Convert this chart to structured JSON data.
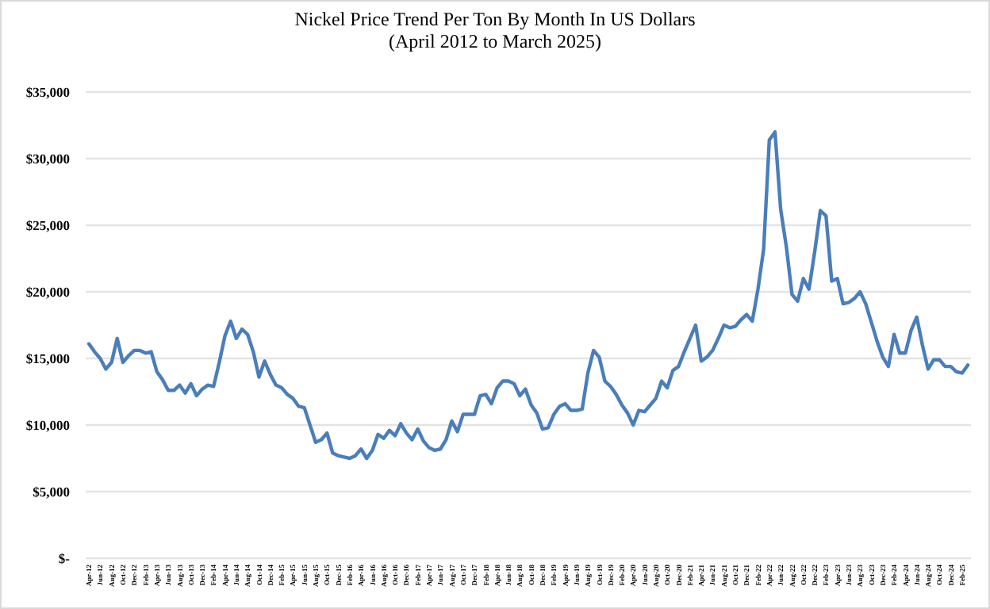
{
  "chart_data": {
    "type": "line",
    "title": "Nickel Price Trend Per Ton By Month In US Dollars",
    "subtitle": "(April 2012 to March 2025)",
    "categories": [
      "Apr-12",
      null,
      "Jun-12",
      null,
      "Aug-12",
      null,
      "Oct-12",
      null,
      "Dec-12",
      null,
      "Feb-13",
      null,
      "Apr-13",
      null,
      "Jun-13",
      null,
      "Aug-13",
      null,
      "Oct-13",
      null,
      "Dec-13",
      null,
      "Feb-14",
      null,
      "Apr-14",
      null,
      "Jun-14",
      null,
      "Aug-14",
      null,
      "Oct-14",
      null,
      "Dec-14",
      null,
      "Feb-15",
      null,
      "Apr-15",
      null,
      "Jun-15",
      null,
      "Aug-15",
      null,
      "Oct-15",
      null,
      "Dec-15",
      null,
      "Feb-16",
      null,
      "Apr-16",
      null,
      "Jun-16",
      null,
      "Aug-16",
      null,
      "Oct-16",
      null,
      "Dec-16",
      null,
      "Feb-17",
      null,
      "Apr-17",
      null,
      "Jun-17",
      null,
      "Aug-17",
      null,
      "Oct-17",
      null,
      "Dec-17",
      null,
      "Feb-18",
      null,
      "Apr-18",
      null,
      "Jun-18",
      null,
      "Aug-18",
      null,
      "Oct-18",
      null,
      "Dec-18",
      null,
      "Feb-19",
      null,
      "Apr-19",
      null,
      "Jun-19",
      null,
      "Aug-19",
      null,
      "Oct-19",
      null,
      "Dec-19",
      null,
      "Feb-20",
      null,
      "Apr-20",
      null,
      "Jun-20",
      null,
      "Aug-20",
      null,
      "Oct-20",
      null,
      "Dec-20",
      null,
      "Feb-21",
      null,
      "Apr-21",
      null,
      "Jun-21",
      null,
      "Aug-21",
      null,
      "Oct-21",
      null,
      "Dec-21",
      null,
      "Feb-22",
      null,
      "Apr-22",
      null,
      "Jun-22",
      null,
      "Aug-22",
      null,
      "Oct-22",
      null,
      "Dec-22",
      null,
      "Feb-23",
      null,
      "Apr-23",
      null,
      "Jun-23",
      null,
      "Aug-23",
      null,
      "Oct-23",
      null,
      "Dec-23",
      null,
      "Feb-24",
      null,
      "Apr-24",
      null,
      "Jun-24",
      null,
      "Aug-24",
      null,
      "Oct-24",
      null,
      "Dec-24",
      null,
      "Feb-25",
      null
    ],
    "series": [
      {
        "color": "#4a7ebb",
        "values": [
          16100,
          15500,
          15000,
          14200,
          14700,
          16500,
          14700,
          15200,
          15600,
          15600,
          15400,
          15500,
          14000,
          13400,
          12600,
          12600,
          13000,
          12400,
          13100,
          12200,
          12700,
          13000,
          12900,
          14700,
          16700,
          17800,
          16500,
          17200,
          16800,
          15500,
          13600,
          14800,
          13800,
          13000,
          12800,
          12300,
          12000,
          11400,
          11300,
          10000,
          8700,
          8900,
          9400,
          7900,
          7700,
          7600,
          7500,
          7700,
          8200,
          7500,
          8100,
          9300,
          9000,
          9600,
          9200,
          10100,
          9400,
          8900,
          9700,
          8800,
          8300,
          8100,
          8200,
          8900,
          10300,
          9500,
          10800,
          10800,
          10800,
          12200,
          12300,
          11600,
          12800,
          13300,
          13300,
          13100,
          12200,
          12700,
          11500,
          10900,
          9700,
          9800,
          10800,
          11400,
          11600,
          11100,
          11100,
          11200,
          13900,
          15600,
          15100,
          13300,
          12900,
          12300,
          11500,
          10900,
          10000,
          11100,
          11000,
          11500,
          12000,
          13300,
          12800,
          14100,
          14400,
          15500,
          16500,
          17500,
          14800,
          15100,
          15600,
          16500,
          17500,
          17300,
          17400,
          17900,
          18300,
          17800,
          20200,
          23200,
          31400,
          32000,
          26200,
          23400,
          19800,
          19300,
          21000,
          20200,
          23000,
          26100,
          25700,
          20800,
          21000,
          19100,
          19200,
          19500,
          20000,
          19100,
          17700,
          16300,
          15100,
          14400,
          16800,
          15400,
          15400,
          17100,
          18100,
          16000,
          14200,
          14900,
          14900,
          14400,
          14400,
          14000,
          13900,
          14500
        ]
      }
    ],
    "ylim": [
      0,
      35000
    ],
    "yticks": [
      {
        "value": 0,
        "label": "$-"
      },
      {
        "value": 5000,
        "label": "$5,000"
      },
      {
        "value": 10000,
        "label": "$10,000"
      },
      {
        "value": 15000,
        "label": "$15,000"
      },
      {
        "value": 20000,
        "label": "$20,000"
      },
      {
        "value": 25000,
        "label": "$25,000"
      },
      {
        "value": 30000,
        "label": "$30,000"
      },
      {
        "value": 35000,
        "label": "$35,000"
      }
    ],
    "grid": "y",
    "marker": "none",
    "line_style": "solid"
  }
}
